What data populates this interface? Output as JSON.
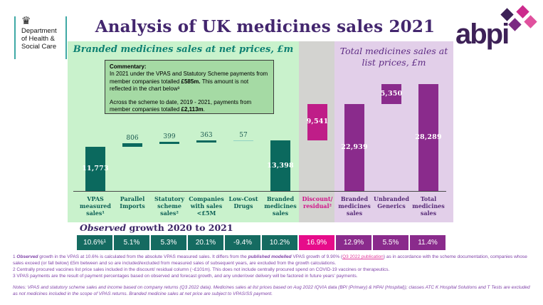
{
  "header": {
    "dhsc_logo": {
      "line1": "Department",
      "line2": "of Health &",
      "line3": "Social Care"
    },
    "title": "Analysis of UK medicines sales 2021",
    "abpi_logo_text": "abpi"
  },
  "panels": {
    "net_title": "Branded medicines sales at net prices, £m",
    "list_title": "Total medicines sales at list prices, £m"
  },
  "commentary": {
    "heading": "Commentary:",
    "p1": [
      {
        "text": "In 2021 under the VPAS and Statutory Scheme payments from member companies totalled "
      },
      {
        "text": "£585m.",
        "bold": true
      },
      {
        "text": " This amount is not reflected in the chart below³"
      }
    ],
    "p2": [
      {
        "text": "Across the scheme to date, 2019 - 2021, payments from member companies totalled "
      },
      {
        "text": "£2,113m",
        "bold": true
      },
      {
        "text": "."
      }
    ]
  },
  "growth": {
    "title_italic": "Observed",
    "title_rest": " growth 2020 to 2021"
  },
  "colors": {
    "teal": "#0b695e",
    "teal-light": "#93d2c3",
    "magenta": "#bf1d88",
    "purple": "#8a2b8c",
    "g-teal": "#156b61",
    "g-pink": "#e60c8a",
    "g-purple": "#8a2b8c",
    "cat_net": "#0d6055",
    "cat_discount": "#d01389",
    "cat_list": "#562a76",
    "title_purple": "#43266e"
  },
  "chart_data": {
    "type": "bar",
    "subtype": "waterfall",
    "unit": "£m",
    "title": "Analysis of UK medicines sales 2021",
    "group_titles": [
      "Branded medicines sales at net prices, £m",
      "Total medicines sales at list prices, £m"
    ],
    "growth_row_title": "Observed growth 2020 to 2021",
    "ylim": [
      0,
      30000
    ],
    "columns": [
      {
        "panel": "net",
        "label": "VPAS measured sales¹",
        "value": 11773,
        "display": "11,773",
        "base": 0,
        "color": "teal",
        "growth": "10.6%¹",
        "growth_color": "g-teal"
      },
      {
        "panel": "net",
        "label": "Parallel Imports",
        "value": 806,
        "display": "806",
        "base": 11773,
        "color": "teal",
        "growth": "5.1%",
        "growth_color": "g-teal"
      },
      {
        "panel": "net",
        "label": "Statutory scheme sales²",
        "value": 399,
        "display": "399",
        "base": 12579,
        "color": "teal",
        "growth": "5.3%",
        "growth_color": "g-teal"
      },
      {
        "panel": "net",
        "label": "Companies with sales <£5M",
        "value": 363,
        "display": "363",
        "base": 12978,
        "color": "teal",
        "growth": "20.1%",
        "growth_color": "g-teal"
      },
      {
        "panel": "net",
        "label": "Low-Cost Drugs",
        "value": 57,
        "display": "57",
        "base": 13341,
        "color": "teal-light",
        "growth": "-9.4%",
        "growth_color": "g-teal"
      },
      {
        "panel": "net",
        "label": "Branded medicines sales",
        "value": 13398,
        "display": "13,398",
        "base": 0,
        "color": "teal",
        "growth": "10.2%",
        "growth_color": "g-teal"
      },
      {
        "panel": "discount",
        "label": "Discount/ residual²",
        "value": 9541,
        "display": "9,541",
        "base": 13398,
        "color": "magenta",
        "growth": "16.9%",
        "growth_color": "g-pink"
      },
      {
        "panel": "list",
        "label": "Branded medicines sales",
        "value": 22939,
        "display": "22,939",
        "base": 0,
        "color": "purple",
        "growth": "12.9%",
        "growth_color": "g-purple"
      },
      {
        "panel": "list",
        "label": "Unbranded Generics",
        "value": 5350,
        "display": "5,350",
        "base": 22939,
        "color": "purple",
        "growth": "5.5%",
        "growth_color": "g-purple"
      },
      {
        "panel": "list",
        "label": "Total medicines sales",
        "value": 28289,
        "display": "28,289",
        "base": 0,
        "color": "purple",
        "growth": "11.4%",
        "growth_color": "g-purple"
      }
    ]
  },
  "footnotes": {
    "f1": [
      {
        "text": "1 "
      },
      {
        "text": "Observed",
        "bold": true,
        "italic": true
      },
      {
        "text": " growth in the VPAS at 10.6% is calculated from the absolute VPAS measured sales. It differs from the "
      },
      {
        "text": "published modelled",
        "bold": true,
        "italic": true
      },
      {
        "text": " VPAS growth of 9.90% ("
      },
      {
        "text": "Q3 2022 publication",
        "link": true
      },
      {
        "text": ") as in accordance with the scheme documentation, companies whose sales exceed (or fall below) £5m between and so are included/excluded from measured sales of subsequent years, are excluded from the growth calculations."
      }
    ],
    "f2": [
      {
        "text": "2 Centrally procured vaccines list price sales included in the discount/ residual column (~£101m). This does not include centrally procured spend on COVID-19 vaccines or therapeutics."
      }
    ],
    "f3": [
      {
        "text": "3 VPAS payments are the result of payment percentages based on observed and forecast growth, and any under/over delivery will be factored in future years' payments."
      }
    ]
  },
  "notes": "Notes: VPAS and statutory scheme sales and income based on company returns (Q3 2022 data). Medicines sales at list prices based on Aug 2022 IQVIA data (BPI (Primary) & HPAI (Hospital)); classes ATC K Hospital Solutions and T Tests are excluded as not medicines included in the scope of VPAS returns. Branded medicine sales at net price are subject to VPAS/SS payment."
}
